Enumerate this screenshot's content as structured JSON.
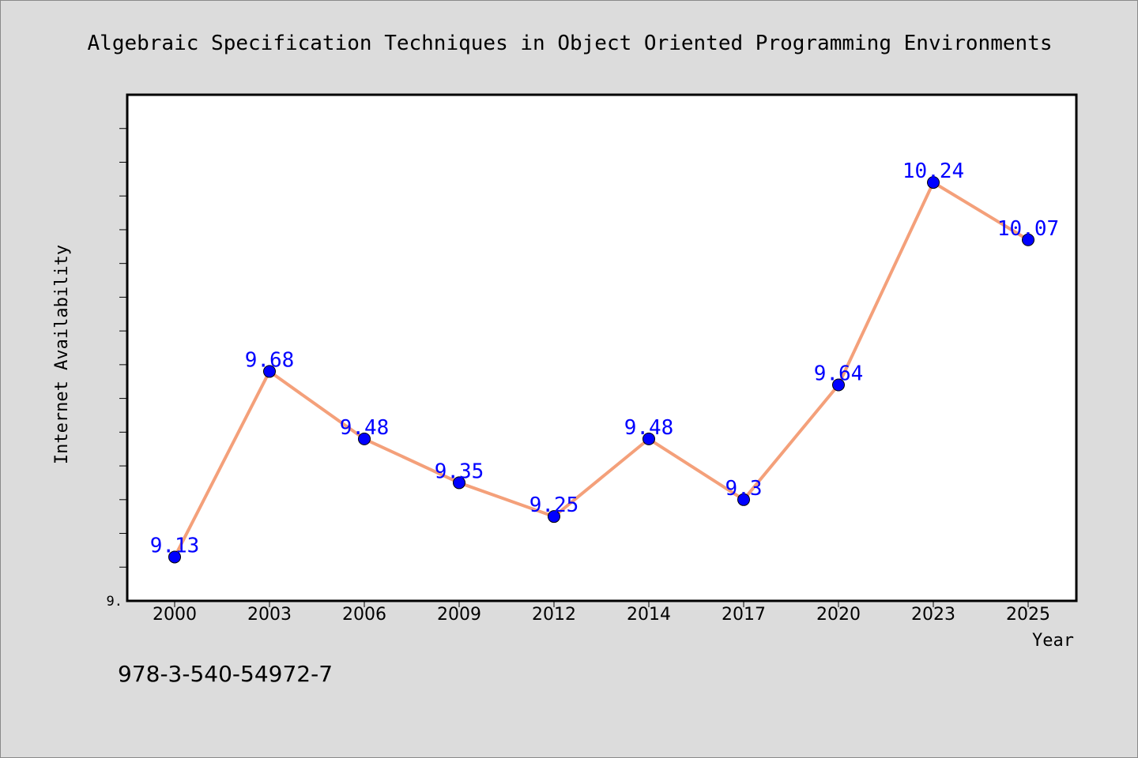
{
  "chart_data": {
    "type": "line",
    "title": "Algebraic Specification Techniques in Object Oriented Programming Environments",
    "xlabel": "Year",
    "ylabel": "Internet Availability",
    "categories": [
      "2000",
      "2003",
      "2006",
      "2009",
      "2012",
      "2014",
      "2017",
      "2020",
      "2023",
      "2025"
    ],
    "values": [
      9.13,
      9.68,
      9.48,
      9.35,
      9.25,
      9.48,
      9.3,
      9.64,
      10.24,
      10.07
    ],
    "data_labels": [
      "9.13",
      "9.68",
      "9.48",
      "9.35",
      "9.25",
      "9.48",
      "9.3",
      "9.64",
      "10.24",
      "10.07"
    ],
    "ylim": [
      9.0,
      10.5
    ],
    "y_tick_label": "9.",
    "y_minor_tick_step": 0.1,
    "grid": false,
    "legend": "none",
    "colors": {
      "line": "#f4a07a",
      "marker": "#0000ff",
      "data_label": "#0000ff",
      "plot_background": "#ffffff",
      "page_background": "#dcdcdc"
    }
  },
  "footer_text": "978-3-540-54972-7"
}
